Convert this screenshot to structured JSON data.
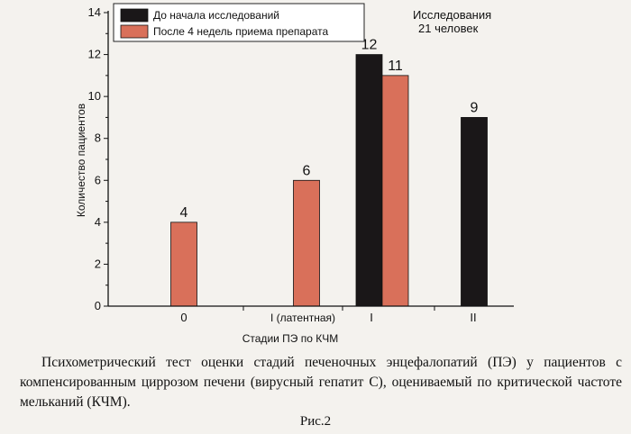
{
  "chart_data": {
    "type": "bar",
    "categories": [
      "0",
      "I (латентная)",
      "I",
      "II"
    ],
    "series": [
      {
        "name": "До начала исследований",
        "color": "#1a1718",
        "values": [
          null,
          null,
          12,
          9
        ]
      },
      {
        "name": "После 4 недель приема препарата",
        "color": "#d9705a",
        "values": [
          4,
          6,
          11,
          null
        ]
      }
    ],
    "data_labels": {
      "before": [
        "",
        "",
        "12",
        "9"
      ],
      "after": [
        "4",
        "6",
        "11",
        ""
      ]
    },
    "ylabel": "Количество пациентов",
    "xlabel": "Стадии ПЭ по КЧМ",
    "ylim": [
      0,
      14
    ],
    "yticks": [
      "0",
      "2",
      "4",
      "6",
      "8",
      "10",
      "12",
      "14"
    ],
    "legend_position": "top-left",
    "annotation": [
      "Исследования",
      "21 человек"
    ]
  },
  "caption": "Психометрический тест оценки стадий печеночных энцефалопатий (ПЭ) у пациентов с компенсированным циррозом печени (вирусный гепатит С), оцениваемый по критической частоте мельканий (КЧМ).",
  "figure_label": "Рис.2"
}
